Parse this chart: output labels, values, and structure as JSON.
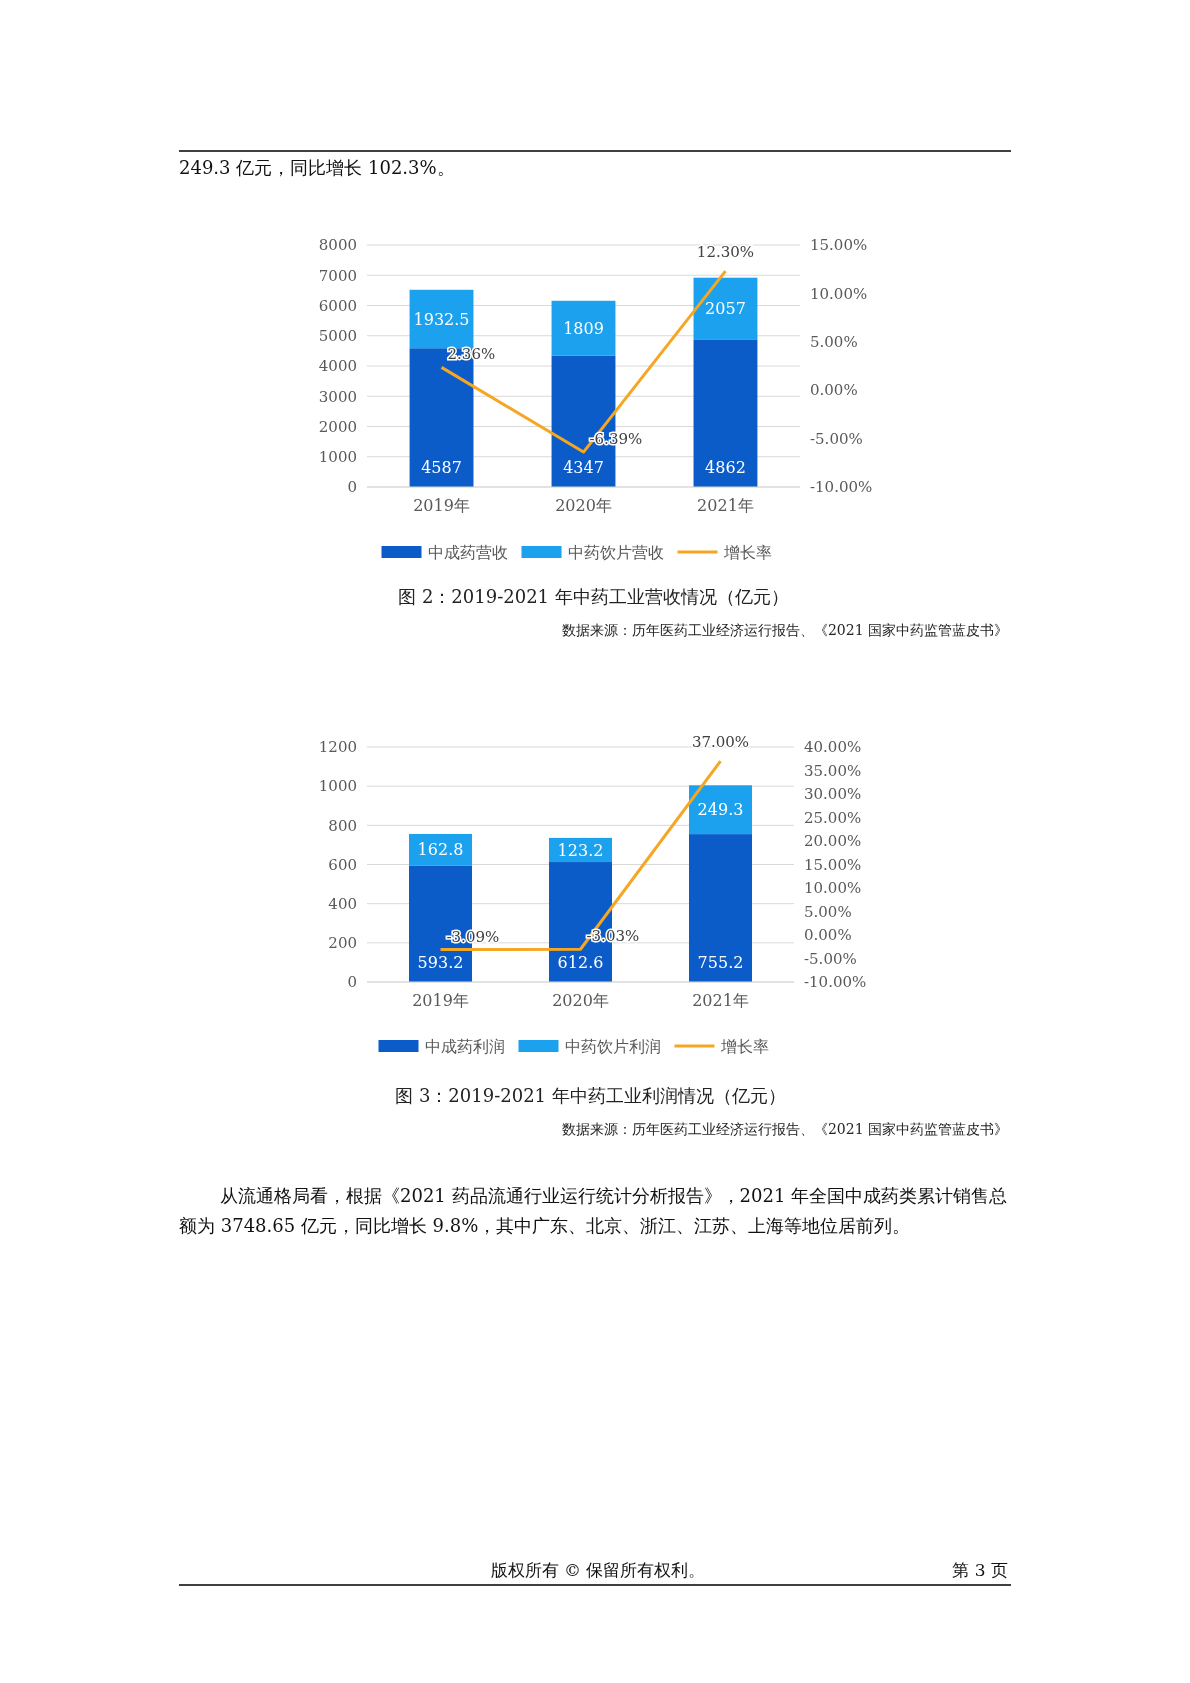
{
  "chart_data": [
    {
      "type": "bar",
      "stacked": true,
      "title": "图 2：2019-2021 年中药工业营收情况（亿元）",
      "annotations": [
        "249.3 亿元，同比增长 102.3%。",
        "数据来源：历年医药工业经济运行报告、《2021 国家中药监管蓝皮书》"
      ],
      "categories": [
        "2019年",
        "2020年",
        "2021年"
      ],
      "series": [
        {
          "name": "中成药营收",
          "color": "#0b5cc9",
          "values": [
            4587,
            4347,
            4862
          ]
        },
        {
          "name": "中药饮片营收",
          "color": "#1ba1ee",
          "values": [
            1932.5,
            1809,
            2057
          ]
        },
        {
          "name": "增长率",
          "type": "line",
          "axis": "y2",
          "color": "#f5a623",
          "values": [
            2.36,
            -6.39,
            12.3
          ],
          "value_labels": [
            "2.36%",
            "-6.39%",
            "12.30%"
          ]
        }
      ],
      "data_labels": true,
      "ylim": [
        0,
        8000
      ],
      "yticks": [
        0,
        1000,
        2000,
        3000,
        4000,
        5000,
        6000,
        7000,
        8000
      ],
      "y2lim": [
        -10,
        15
      ],
      "y2ticks": [
        {
          "value": -10,
          "label": "-10.00%"
        },
        {
          "value": -5,
          "label": "-5.00%"
        },
        {
          "value": 0,
          "label": "0.00%"
        },
        {
          "value": 5,
          "label": "5.00%"
        },
        {
          "value": 10,
          "label": "10.00%"
        },
        {
          "value": 15,
          "label": "15.00%"
        }
      ],
      "grid": "y",
      "legend": "bottom",
      "marker": "none"
    },
    {
      "type": "bar",
      "stacked": true,
      "title": "图 3：2019-2021 年中药工业利润情况（亿元）",
      "annotations": [
        "数据来源：历年医药工业经济运行报告、《2021 国家中药监管蓝皮书》",
        "从流通格局看，根据《2021 药品流通行业运行统计分析报告》，2021 年全国中成药类累计销售总额为 3748.65 亿元，同比增长 9.8%，其中广东、北京、浙江、江苏、上海等地位居前列。",
        "版权所有 © 保留所有权利。",
        "第 3 页"
      ],
      "categories": [
        "2019年",
        "2020年",
        "2021年"
      ],
      "series": [
        {
          "name": "中成药利润",
          "color": "#0b5cc9",
          "values": [
            593.2,
            612.6,
            755.2
          ]
        },
        {
          "name": "中药饮片利润",
          "color": "#1ba1ee",
          "values": [
            162.8,
            123.2,
            249.3
          ]
        },
        {
          "name": "增长率",
          "type": "line",
          "axis": "y2",
          "color": "#f5a623",
          "values": [
            -3.09,
            -3.03,
            37.0
          ],
          "value_labels": [
            "-3.09%",
            "-3.03%",
            "37.00%"
          ]
        }
      ],
      "data_labels": true,
      "ylim": [
        0,
        1200
      ],
      "yticks": [
        0,
        200,
        400,
        600,
        800,
        1000,
        1200
      ],
      "y2lim": [
        -10,
        40
      ],
      "y2ticks": [
        {
          "value": -10,
          "label": "-10.00%"
        },
        {
          "value": -5,
          "label": "-5.00%"
        },
        {
          "value": 0,
          "label": "0.00%"
        },
        {
          "value": 5,
          "label": "5.00%"
        },
        {
          "value": 10,
          "label": "10.00%"
        },
        {
          "value": 15,
          "label": "15.00%"
        },
        {
          "value": 20,
          "label": "20.00%"
        },
        {
          "value": 25,
          "label": "25.00%"
        },
        {
          "value": 30,
          "label": "30.00%"
        },
        {
          "value": 35,
          "label": "35.00%"
        },
        {
          "value": 40,
          "label": "40.00%"
        }
      ],
      "grid": "y",
      "legend": "bottom",
      "marker": "none"
    }
  ]
}
